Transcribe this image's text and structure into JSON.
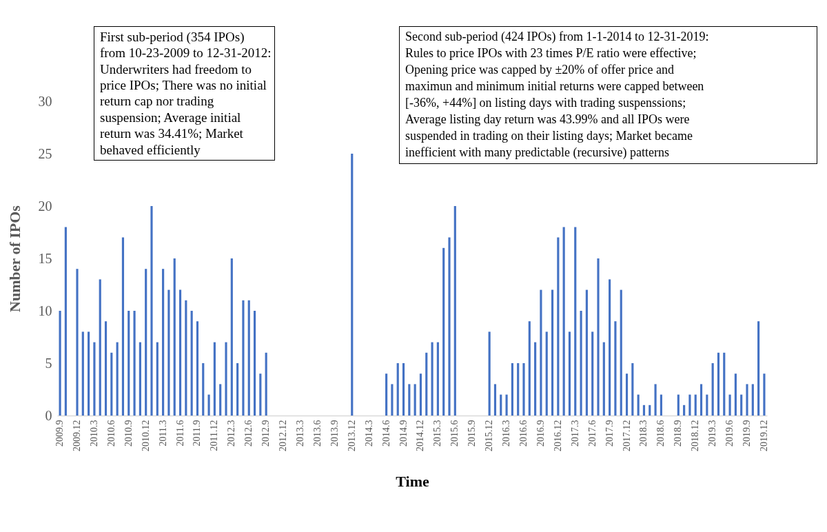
{
  "chart_data": {
    "type": "bar",
    "xlabel": "Time",
    "ylabel": "Number of  IPOs",
    "categories": [
      "2009.9",
      null,
      null,
      "2009.12",
      null,
      null,
      "2010.3",
      null,
      null,
      "2010.6",
      null,
      null,
      "2010.9",
      null,
      null,
      "2010.12",
      null,
      null,
      "2011.3",
      null,
      null,
      "2011.6",
      null,
      null,
      "2011.9",
      null,
      null,
      "2011.12",
      null,
      null,
      "2012.3",
      null,
      null,
      "2012.6",
      null,
      null,
      "2012.9",
      null,
      null,
      "2012.12",
      null,
      null,
      "2013.3",
      null,
      null,
      "2013.6",
      null,
      null,
      "2013.9",
      null,
      null,
      "2013.12",
      null,
      null,
      "2014.3",
      null,
      null,
      "2014.6",
      null,
      null,
      "2014.9",
      null,
      null,
      "2014.12",
      null,
      null,
      "2015.3",
      null,
      null,
      "2015.6",
      null,
      null,
      "2015.9",
      null,
      null,
      "2015.12",
      null,
      null,
      "2016.3",
      null,
      null,
      "2016.6",
      null,
      null,
      "2016.9",
      null,
      null,
      "2016.12",
      null,
      null,
      "2017.3",
      null,
      null,
      "2017.6",
      null,
      null,
      "2017.9",
      null,
      null,
      "2017.12",
      null,
      null,
      "2018.3",
      null,
      null,
      "2018.6",
      null,
      null,
      "2018.9",
      null,
      null,
      "2018.12",
      null,
      null,
      "2019.3",
      null,
      null,
      "2019.6",
      null,
      null,
      "2019.9",
      null,
      null,
      "2019.12"
    ],
    "values": [
      10,
      18,
      0,
      14,
      8,
      8,
      7,
      13,
      9,
      6,
      7,
      17,
      10,
      10,
      7,
      14,
      20,
      7,
      14,
      12,
      15,
      12,
      11,
      10,
      9,
      5,
      2,
      7,
      3,
      7,
      15,
      5,
      11,
      11,
      10,
      4,
      6,
      0,
      0,
      0,
      0,
      0,
      0,
      0,
      0,
      0,
      0,
      0,
      0,
      0,
      0,
      25,
      0,
      0,
      0,
      0,
      0,
      4,
      3,
      5,
      5,
      3,
      3,
      4,
      6,
      7,
      7,
      16,
      17,
      20,
      0,
      0,
      0,
      0,
      0,
      8,
      3,
      2,
      2,
      5,
      5,
      5,
      9,
      7,
      12,
      8,
      12,
      17,
      18,
      8,
      18,
      10,
      12,
      8,
      15,
      7,
      13,
      9,
      12,
      4,
      5,
      2,
      1,
      1,
      3,
      2,
      0,
      0,
      2,
      1,
      2,
      2,
      3,
      2,
      5,
      6,
      6,
      2,
      4,
      2,
      3,
      3,
      9,
      4
    ],
    "color": "#4472c4",
    "ylim": [
      0,
      30
    ],
    "yticks": [
      0,
      5,
      10,
      15,
      20,
      25,
      30
    ],
    "annotations": [
      "First sub-period (354 IPOs)\nfrom 10-23-2009 to 12-31-2012:\nUnderwriters had freedom to\nprice IPOs; There was no initial\nreturn cap nor trading\nsuspension; Average initial\nreturn was 34.41%; Market\nbehaved efficiently",
      "Second sub-period (424 IPOs) from 1-1-2014 to 12-31-2019:\nRules to price IPOs with 23 times P/E ratio were effective;\nOpening price was capped by ±20% of offer price and\nmaximun and minimum initial returns were capped between\n[-36%, +44%] on listing days with trading suspenssions;\nAverage listing day return was 43.99% and all IPOs were\nsuspended in trading on their listing days; Market became\ninefficient with many predictable (recursive) patterns"
    ]
  }
}
